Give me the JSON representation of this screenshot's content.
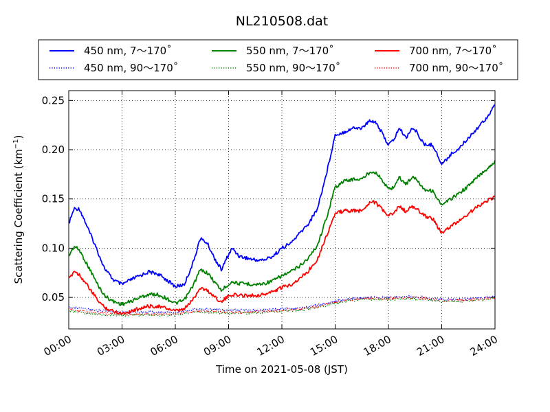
{
  "chart_data": {
    "type": "line",
    "title": "NL210508.dat",
    "xlabel": "Time on 2021-05-08 (JST)",
    "ylabel": "Scattering Coefficient (km",
    "ylabel_sup": "−1",
    "ylabel_close": ")",
    "xlim": [
      0,
      24
    ],
    "ylim": [
      0.018,
      0.26
    ],
    "xticks": [
      0,
      3,
      6,
      9,
      12,
      15,
      18,
      21,
      24
    ],
    "xtick_labels": [
      "00:00",
      "03:00",
      "06:00",
      "09:00",
      "12:00",
      "15:00",
      "18:00",
      "21:00",
      "24:00"
    ],
    "yticks": [
      0.05,
      0.1,
      0.15,
      0.2,
      0.25
    ],
    "ytick_labels": [
      "0.05",
      "0.10",
      "0.15",
      "0.20",
      "0.25"
    ],
    "grid": true,
    "legend_position": "top",
    "series": [
      {
        "name": "450 nm, 7～170˚",
        "color": "#0000ff",
        "style": "solid",
        "x": [
          0,
          0.3,
          0.6,
          0.9,
          1.2,
          1.6,
          2.0,
          2.5,
          3.0,
          3.5,
          4.0,
          4.5,
          5.0,
          5.5,
          6.0,
          6.5,
          7.0,
          7.4,
          7.8,
          8.2,
          8.6,
          8.9,
          9.2,
          9.6,
          10,
          10.5,
          11,
          11.5,
          12,
          12.5,
          13,
          13.5,
          14,
          14.5,
          15,
          15.5,
          16,
          16.5,
          17,
          17.3,
          17.6,
          18,
          18.3,
          18.6,
          19,
          19.3,
          19.6,
          20,
          20.5,
          21,
          21.5,
          22,
          22.5,
          23,
          23.5,
          24
        ],
        "y": [
          0.125,
          0.14,
          0.14,
          0.128,
          0.115,
          0.098,
          0.08,
          0.068,
          0.063,
          0.068,
          0.072,
          0.076,
          0.074,
          0.068,
          0.061,
          0.063,
          0.085,
          0.11,
          0.105,
          0.09,
          0.078,
          0.09,
          0.1,
          0.092,
          0.09,
          0.088,
          0.088,
          0.092,
          0.1,
          0.105,
          0.115,
          0.125,
          0.14,
          0.175,
          0.215,
          0.218,
          0.222,
          0.222,
          0.23,
          0.228,
          0.218,
          0.205,
          0.21,
          0.222,
          0.212,
          0.222,
          0.218,
          0.205,
          0.205,
          0.185,
          0.195,
          0.202,
          0.212,
          0.222,
          0.232,
          0.245
        ]
      },
      {
        "name": "550 nm, 7～170˚",
        "color": "#008000",
        "style": "solid",
        "x": [
          0,
          0.3,
          0.6,
          0.9,
          1.2,
          1.6,
          2.0,
          2.5,
          3.0,
          3.5,
          4.0,
          4.5,
          5.0,
          5.5,
          6.0,
          6.5,
          7.0,
          7.4,
          7.8,
          8.2,
          8.6,
          8.9,
          9.2,
          9.6,
          10,
          10.5,
          11,
          11.5,
          12,
          12.5,
          13,
          13.5,
          14,
          14.5,
          15,
          15.5,
          16,
          16.5,
          17,
          17.3,
          17.6,
          18,
          18.3,
          18.6,
          19,
          19.3,
          19.6,
          20,
          20.5,
          21,
          21.5,
          22,
          22.5,
          23,
          23.5,
          24
        ],
        "y": [
          0.092,
          0.102,
          0.098,
          0.088,
          0.078,
          0.064,
          0.052,
          0.046,
          0.043,
          0.046,
          0.05,
          0.053,
          0.053,
          0.049,
          0.044,
          0.047,
          0.062,
          0.078,
          0.075,
          0.066,
          0.057,
          0.062,
          0.066,
          0.064,
          0.064,
          0.063,
          0.064,
          0.067,
          0.072,
          0.076,
          0.082,
          0.09,
          0.103,
          0.13,
          0.162,
          0.168,
          0.17,
          0.17,
          0.178,
          0.177,
          0.17,
          0.16,
          0.162,
          0.172,
          0.165,
          0.172,
          0.17,
          0.16,
          0.158,
          0.143,
          0.15,
          0.156,
          0.163,
          0.172,
          0.18,
          0.188
        ]
      },
      {
        "name": "700 nm, 7～170˚",
        "color": "#ff0000",
        "style": "solid",
        "x": [
          0,
          0.3,
          0.6,
          0.9,
          1.2,
          1.6,
          2.0,
          2.5,
          3.0,
          3.5,
          4.0,
          4.5,
          5.0,
          5.5,
          6.0,
          6.5,
          7.0,
          7.4,
          7.8,
          8.2,
          8.6,
          8.9,
          9.2,
          9.6,
          10,
          10.5,
          11,
          11.5,
          12,
          12.5,
          13,
          13.5,
          14,
          14.5,
          15,
          15.5,
          16,
          16.5,
          17,
          17.3,
          17.6,
          18,
          18.3,
          18.6,
          19,
          19.3,
          19.6,
          20,
          20.5,
          21,
          21.5,
          22,
          22.5,
          23,
          23.5,
          24
        ],
        "y": [
          0.068,
          0.077,
          0.073,
          0.066,
          0.058,
          0.048,
          0.04,
          0.036,
          0.034,
          0.036,
          0.039,
          0.041,
          0.041,
          0.039,
          0.036,
          0.038,
          0.048,
          0.06,
          0.057,
          0.051,
          0.045,
          0.05,
          0.053,
          0.052,
          0.052,
          0.052,
          0.053,
          0.056,
          0.06,
          0.063,
          0.069,
          0.077,
          0.089,
          0.112,
          0.135,
          0.138,
          0.138,
          0.138,
          0.148,
          0.146,
          0.14,
          0.133,
          0.135,
          0.143,
          0.137,
          0.142,
          0.14,
          0.133,
          0.13,
          0.115,
          0.122,
          0.128,
          0.135,
          0.142,
          0.148,
          0.152
        ]
      },
      {
        "name": "450 nm, 90～170˚",
        "color": "#0000ff",
        "style": "dotted",
        "x": [
          0,
          1,
          2,
          3,
          4,
          5,
          6,
          7,
          8,
          9,
          10,
          11,
          12,
          13,
          14,
          15,
          16,
          17,
          18,
          19,
          20,
          21,
          22,
          23,
          24
        ],
        "y": [
          0.04,
          0.038,
          0.036,
          0.035,
          0.035,
          0.035,
          0.035,
          0.038,
          0.038,
          0.037,
          0.037,
          0.037,
          0.038,
          0.039,
          0.042,
          0.046,
          0.049,
          0.05,
          0.05,
          0.051,
          0.05,
          0.048,
          0.048,
          0.049,
          0.051
        ]
      },
      {
        "name": "550 nm, 90～170˚",
        "color": "#008000",
        "style": "dotted",
        "x": [
          0,
          1,
          2,
          3,
          4,
          5,
          6,
          7,
          8,
          9,
          10,
          11,
          12,
          13,
          14,
          15,
          16,
          17,
          18,
          19,
          20,
          21,
          22,
          23,
          24
        ],
        "y": [
          0.036,
          0.034,
          0.032,
          0.032,
          0.032,
          0.032,
          0.032,
          0.035,
          0.035,
          0.034,
          0.034,
          0.035,
          0.036,
          0.037,
          0.04,
          0.044,
          0.047,
          0.048,
          0.048,
          0.049,
          0.048,
          0.046,
          0.046,
          0.047,
          0.049
        ]
      },
      {
        "name": "700 nm, 90～170˚",
        "color": "#ff0000",
        "style": "dotted",
        "x": [
          0,
          1,
          2,
          3,
          4,
          5,
          6,
          7,
          8,
          9,
          10,
          11,
          12,
          13,
          14,
          15,
          16,
          17,
          18,
          19,
          20,
          21,
          22,
          23,
          24
        ],
        "y": [
          0.038,
          0.036,
          0.034,
          0.033,
          0.033,
          0.033,
          0.033,
          0.036,
          0.036,
          0.035,
          0.035,
          0.036,
          0.037,
          0.038,
          0.041,
          0.045,
          0.048,
          0.049,
          0.049,
          0.05,
          0.049,
          0.047,
          0.047,
          0.048,
          0.05
        ]
      }
    ]
  }
}
